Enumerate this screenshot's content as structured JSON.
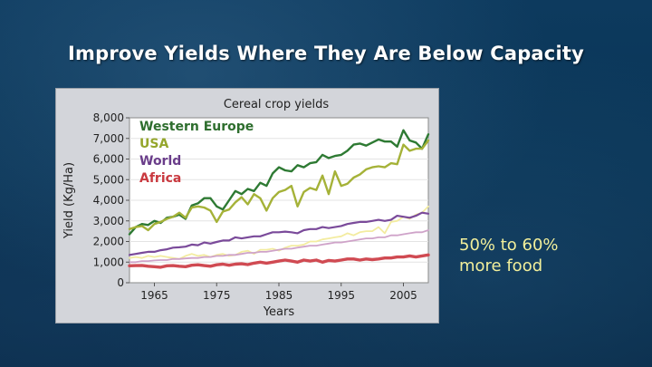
{
  "slide": {
    "title": "Improve Yields Where They Are Below Capacity",
    "note_line1": "50% to 60%",
    "note_line2": "more food"
  },
  "chart_data": {
    "type": "line",
    "title": "Cereal crop yields",
    "xlabel": "Years",
    "ylabel": "Yield (Kg/Ha)",
    "xlim": [
      1961,
      2009
    ],
    "ylim": [
      0,
      8000
    ],
    "xticks": [
      1965,
      1975,
      1985,
      1995,
      2005
    ],
    "yticks": [
      0,
      1000,
      2000,
      3000,
      4000,
      5000,
      6000,
      7000,
      8000
    ],
    "ytick_labels": [
      "0",
      "1,000",
      "2,000",
      "3,000",
      "4,000",
      "5,000",
      "6,000",
      "7,000",
      "8,000"
    ],
    "grid": true,
    "legend": "top-left",
    "x": [
      1961,
      1962,
      1963,
      1964,
      1965,
      1966,
      1967,
      1968,
      1969,
      1970,
      1971,
      1972,
      1973,
      1974,
      1975,
      1976,
      1977,
      1978,
      1979,
      1980,
      1981,
      1982,
      1983,
      1984,
      1985,
      1986,
      1987,
      1988,
      1989,
      1990,
      1991,
      1992,
      1993,
      1994,
      1995,
      1996,
      1997,
      1998,
      1999,
      2000,
      2001,
      2002,
      2003,
      2004,
      2005,
      2006,
      2007,
      2008,
      2009
    ],
    "series": [
      {
        "name": "Western Europe",
        "color": "#2e7a33",
        "width": 2.4,
        "label_color": "#2e6e2e",
        "values": [
          2350,
          2700,
          2850,
          2800,
          3000,
          2900,
          3150,
          3200,
          3300,
          3100,
          3750,
          3850,
          4100,
          4100,
          3700,
          3550,
          4000,
          4450,
          4300,
          4550,
          4450,
          4850,
          4700,
          5300,
          5600,
          5450,
          5400,
          5700,
          5600,
          5800,
          5850,
          6200,
          6050,
          6150,
          6200,
          6400,
          6700,
          6750,
          6650,
          6800,
          6950,
          6850,
          6850,
          6600,
          7400,
          6900,
          6800,
          6500,
          7200
        ]
      },
      {
        "name": "USA",
        "color": "#a5b238",
        "width": 2.4,
        "label_color": "#95a62c",
        "values": [
          2600,
          2700,
          2750,
          2550,
          2850,
          2950,
          3100,
          3200,
          3400,
          3150,
          3650,
          3700,
          3650,
          3500,
          2950,
          3450,
          3550,
          3900,
          4150,
          3800,
          4300,
          4100,
          3500,
          4100,
          4400,
          4500,
          4700,
          3700,
          4400,
          4600,
          4500,
          5200,
          4300,
          5400,
          4700,
          4800,
          5100,
          5250,
          5500,
          5600,
          5650,
          5600,
          5800,
          5750,
          6700,
          6400,
          6500,
          6500,
          6900
        ]
      },
      {
        "name": "World",
        "color": "#7a4a9a",
        "width": 2.2,
        "label_color": "#6a3d8a",
        "values": [
          1350,
          1400,
          1450,
          1500,
          1500,
          1580,
          1620,
          1700,
          1720,
          1750,
          1850,
          1820,
          1950,
          1900,
          1980,
          2050,
          2050,
          2200,
          2150,
          2200,
          2250,
          2250,
          2350,
          2450,
          2450,
          2480,
          2450,
          2400,
          2550,
          2600,
          2600,
          2700,
          2650,
          2700,
          2750,
          2850,
          2900,
          2950,
          2950,
          3000,
          3050,
          3000,
          3050,
          3250,
          3200,
          3150,
          3250,
          3400,
          3350
        ]
      },
      {
        "name": "",
        "color": "#f3eca0",
        "width": 1.8,
        "label_color": "",
        "values": [
          1200,
          1250,
          1200,
          1300,
          1250,
          1300,
          1250,
          1200,
          1150,
          1300,
          1400,
          1300,
          1350,
          1250,
          1350,
          1400,
          1300,
          1350,
          1500,
          1550,
          1400,
          1600,
          1600,
          1650,
          1550,
          1700,
          1800,
          1800,
          1850,
          2000,
          2000,
          2100,
          2150,
          2200,
          2250,
          2400,
          2300,
          2450,
          2500,
          2500,
          2700,
          2400,
          2950,
          3000,
          3200,
          3100,
          3300,
          3400,
          3700
        ]
      },
      {
        "name": "",
        "color": "#cfa3c9",
        "width": 1.8,
        "label_color": "",
        "values": [
          1000,
          1000,
          1050,
          1050,
          1080,
          1100,
          1100,
          1150,
          1150,
          1180,
          1200,
          1200,
          1250,
          1250,
          1300,
          1300,
          1350,
          1350,
          1400,
          1450,
          1450,
          1500,
          1500,
          1550,
          1600,
          1650,
          1650,
          1700,
          1750,
          1800,
          1800,
          1850,
          1900,
          1950,
          1950,
          2000,
          2050,
          2100,
          2150,
          2150,
          2200,
          2200,
          2300,
          2300,
          2350,
          2400,
          2450,
          2450,
          2550
        ]
      },
      {
        "name": "Africa",
        "color": "#d04a52",
        "width": 3.4,
        "label_color": "#c9393f",
        "values": [
          820,
          830,
          840,
          800,
          780,
          750,
          820,
          830,
          800,
          780,
          850,
          870,
          830,
          800,
          870,
          900,
          850,
          900,
          920,
          880,
          950,
          1000,
          950,
          1000,
          1050,
          1100,
          1050,
          1000,
          1100,
          1050,
          1100,
          1000,
          1080,
          1050,
          1100,
          1150,
          1150,
          1100,
          1150,
          1120,
          1150,
          1200,
          1200,
          1250,
          1250,
          1300,
          1250,
          1300,
          1350
        ]
      }
    ]
  }
}
